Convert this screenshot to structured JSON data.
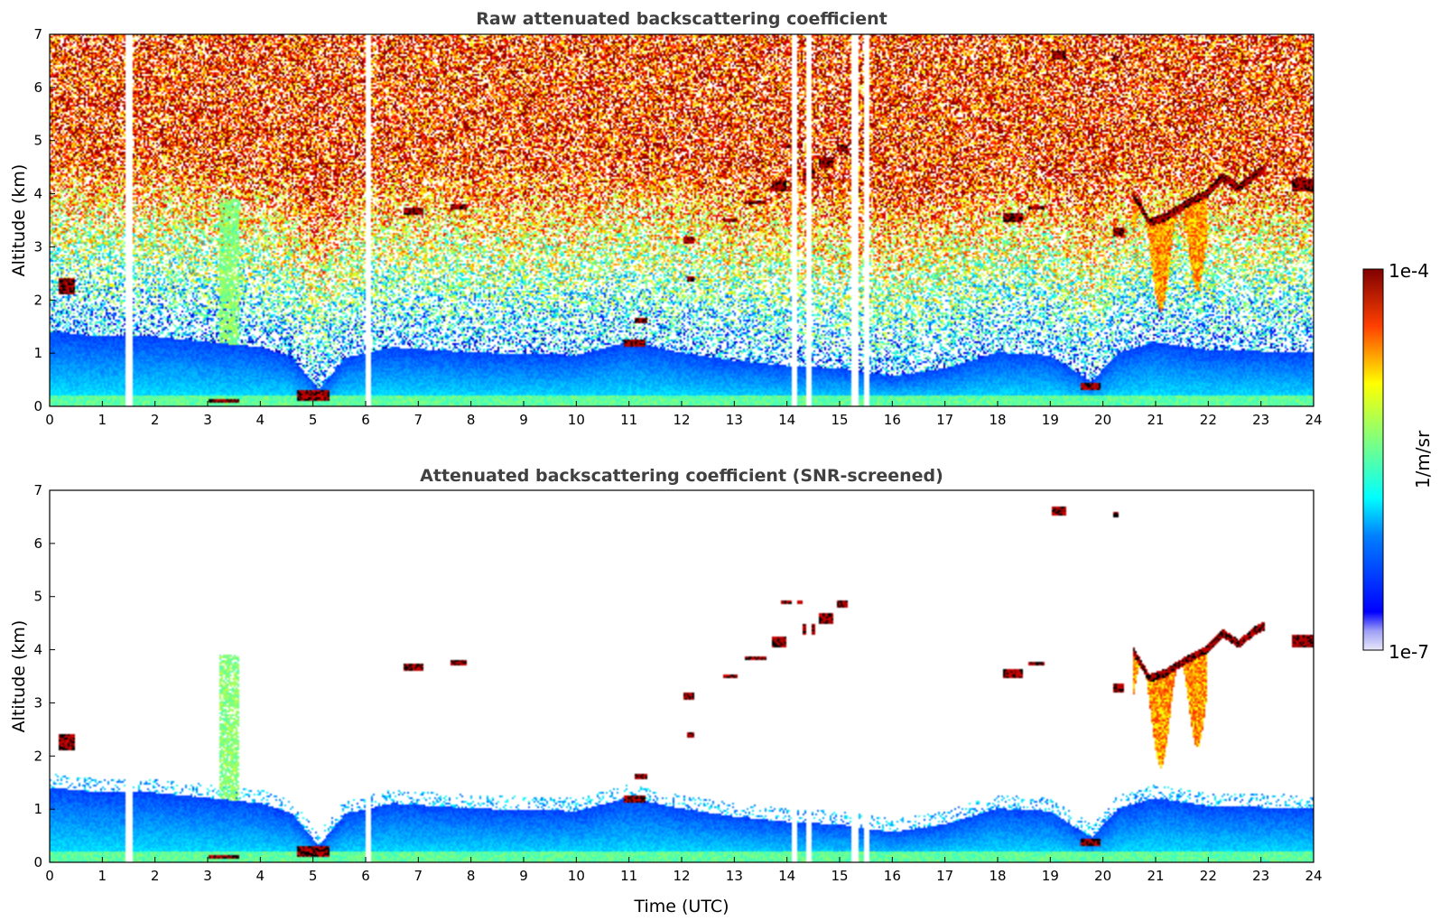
{
  "chart_data": [
    {
      "type": "heatmap",
      "title": "Raw attenuated backscattering coefficient",
      "xlabel": "",
      "ylabel": "Altitude (km)",
      "xlim": [
        0,
        24
      ],
      "ylim": [
        0,
        7
      ],
      "x_ticks": [
        "0",
        "1",
        "2",
        "3",
        "4",
        "5",
        "6",
        "7",
        "8",
        "9",
        "10",
        "11",
        "12",
        "13",
        "14",
        "15",
        "16",
        "17",
        "18",
        "19",
        "20",
        "21",
        "22",
        "23",
        "24"
      ],
      "y_ticks": [
        "0",
        "1",
        "2",
        "3",
        "4",
        "5",
        "6",
        "7"
      ],
      "screened": false
    },
    {
      "type": "heatmap",
      "title": "Attenuated backscattering coefficient (SNR-screened)",
      "xlabel": "Time (UTC)",
      "ylabel": "Altitude (km)",
      "xlim": [
        0,
        24
      ],
      "ylim": [
        0,
        7
      ],
      "x_ticks": [
        "0",
        "1",
        "2",
        "3",
        "4",
        "5",
        "6",
        "7",
        "8",
        "9",
        "10",
        "11",
        "12",
        "13",
        "14",
        "15",
        "16",
        "17",
        "18",
        "19",
        "20",
        "21",
        "22",
        "23",
        "24"
      ],
      "y_ticks": [
        "0",
        "1",
        "2",
        "3",
        "4",
        "5",
        "6",
        "7"
      ],
      "screened": true
    }
  ],
  "colorbar": {
    "label": "1/m/sr",
    "max_label": "1e-4",
    "min_label": "1e-7",
    "scale": "log",
    "colormap": "jet"
  },
  "features": {
    "gaps_hours": [
      1.5,
      6.05,
      14.15,
      14.42,
      15.3,
      15.52
    ],
    "boundary_layer_top_km": [
      [
        0,
        1.4
      ],
      [
        1,
        1.3
      ],
      [
        2,
        1.3
      ],
      [
        3,
        1.2
      ],
      [
        4,
        1.1
      ],
      [
        4.6,
        0.9
      ],
      [
        5.1,
        0.3
      ],
      [
        5.6,
        0.9
      ],
      [
        6.5,
        1.1
      ],
      [
        8,
        1.0
      ],
      [
        10,
        0.95
      ],
      [
        11,
        1.2
      ],
      [
        12,
        1.0
      ],
      [
        13,
        0.85
      ],
      [
        14,
        0.75
      ],
      [
        15,
        0.7
      ],
      [
        16,
        0.55
      ],
      [
        17,
        0.7
      ],
      [
        18,
        1.0
      ],
      [
        19,
        0.95
      ],
      [
        19.8,
        0.45
      ],
      [
        20.3,
        1.0
      ],
      [
        21,
        1.2
      ],
      [
        22,
        1.05
      ],
      [
        24,
        1.0
      ]
    ],
    "clouds": [
      {
        "t0": 6.7,
        "t1": 7.1,
        "h0": 3.6,
        "h1": 3.75
      },
      {
        "t0": 7.6,
        "t1": 7.9,
        "h0": 3.72,
        "h1": 3.8
      },
      {
        "t0": 10.9,
        "t1": 11.3,
        "h0": 1.1,
        "h1": 1.25
      },
      {
        "t0": 11.1,
        "t1": 11.35,
        "h0": 1.55,
        "h1": 1.65
      },
      {
        "t0": 12.05,
        "t1": 12.25,
        "h0": 3.05,
        "h1": 3.2
      },
      {
        "t0": 12.1,
        "t1": 12.25,
        "h0": 2.35,
        "h1": 2.45
      },
      {
        "t0": 12.8,
        "t1": 13.05,
        "h0": 3.45,
        "h1": 3.55
      },
      {
        "t0": 13.2,
        "t1": 13.6,
        "h0": 3.8,
        "h1": 3.88
      },
      {
        "t0": 13.7,
        "t1": 14.0,
        "h0": 4.05,
        "h1": 4.25
      },
      {
        "t0": 14.3,
        "t1": 14.55,
        "h0": 4.3,
        "h1": 4.5
      },
      {
        "t0": 14.6,
        "t1": 14.9,
        "h0": 4.5,
        "h1": 4.7
      },
      {
        "t0": 14.95,
        "t1": 15.15,
        "h0": 4.8,
        "h1": 4.95
      },
      {
        "t0": 13.9,
        "t1": 14.3,
        "h0": 4.85,
        "h1": 4.95
      },
      {
        "t0": 18.1,
        "t1": 18.5,
        "h0": 3.45,
        "h1": 3.65
      },
      {
        "t0": 18.6,
        "t1": 18.9,
        "h0": 3.7,
        "h1": 3.78
      },
      {
        "t0": 19.05,
        "t1": 19.3,
        "h0": 6.55,
        "h1": 6.72
      },
      {
        "t0": 20.2,
        "t1": 20.3,
        "h0": 6.5,
        "h1": 6.6
      },
      {
        "t0": 20.2,
        "t1": 20.4,
        "h0": 3.2,
        "h1": 3.35
      },
      {
        "t0": 19.6,
        "t1": 19.95,
        "h0": 0.3,
        "h1": 0.42
      },
      {
        "t0": 0.15,
        "t1": 0.45,
        "h0": 2.1,
        "h1": 2.4
      },
      {
        "t0": 3.0,
        "t1": 3.6,
        "h0": 0.05,
        "h1": 0.12
      },
      {
        "t0": 4.7,
        "t1": 5.3,
        "h0": 0.1,
        "h1": 0.3
      },
      {
        "t0": 23.6,
        "t1": 24.0,
        "h0": 4.05,
        "h1": 4.3
      }
    ],
    "cirrus_layer": [
      [
        20.6,
        4.0
      ],
      [
        20.9,
        3.5
      ],
      [
        21.2,
        3.6
      ],
      [
        21.6,
        3.85
      ],
      [
        22.0,
        4.05
      ],
      [
        22.3,
        4.35
      ],
      [
        22.6,
        4.15
      ],
      [
        22.9,
        4.4
      ],
      [
        23.1,
        4.5
      ]
    ],
    "aerosol_plume": {
      "t0": 3.2,
      "t1": 3.6,
      "h0": 0.1,
      "h1": 3.9
    }
  }
}
